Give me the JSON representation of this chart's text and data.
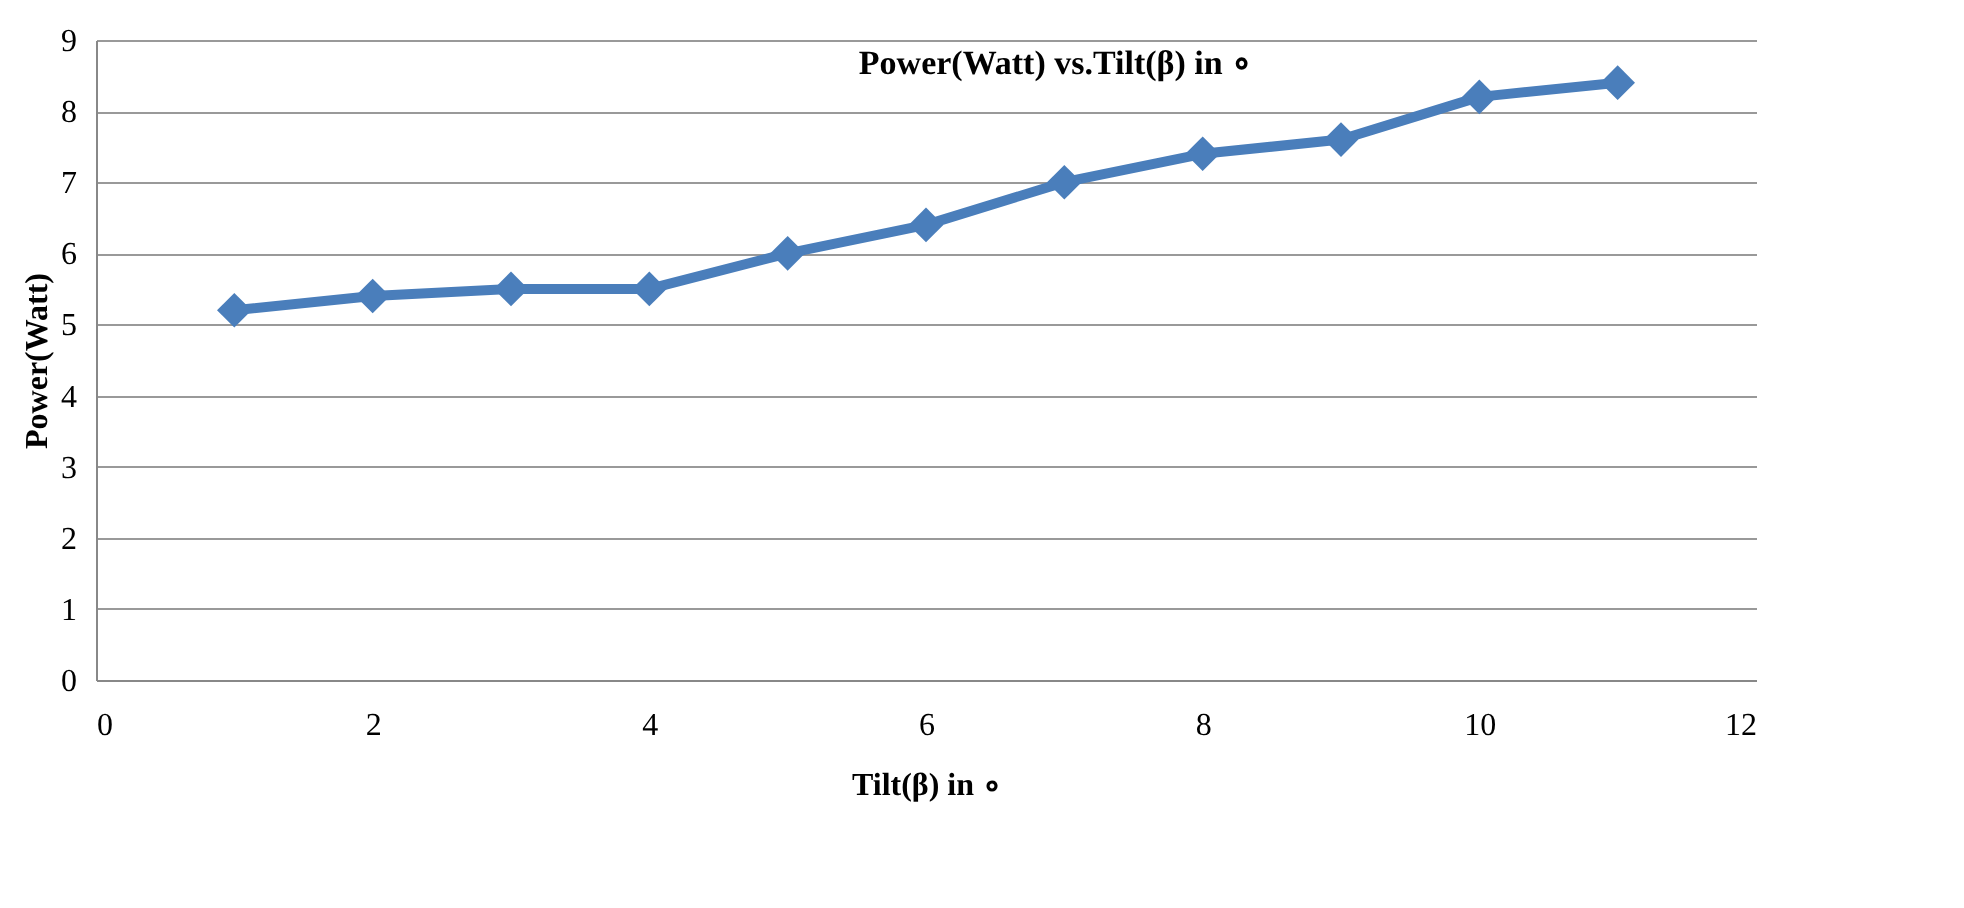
{
  "chart_data": {
    "type": "line",
    "title": "Power(Watt) vs.Tilt(β) in ∘",
    "xlabel": "Tilt(β) in ∘",
    "ylabel": "Power(Watt)",
    "x": [
      1,
      2,
      3,
      4,
      5,
      6,
      7,
      8,
      9,
      10,
      11
    ],
    "series": [
      {
        "color": "#4a7ebb",
        "values": [
          5.2,
          5.4,
          5.5,
          5.5,
          6.0,
          6.4,
          7.0,
          7.4,
          7.6,
          8.2,
          8.4
        ]
      }
    ],
    "xlim": [
      0,
      12
    ],
    "xticks": [
      0,
      2,
      4,
      6,
      8,
      10,
      12
    ],
    "ylim": [
      0,
      9
    ],
    "yticks": [
      0,
      1,
      2,
      3,
      4,
      5,
      6,
      7,
      8,
      9
    ],
    "grid": "y",
    "marker": "diamond",
    "line_style": "solid"
  }
}
